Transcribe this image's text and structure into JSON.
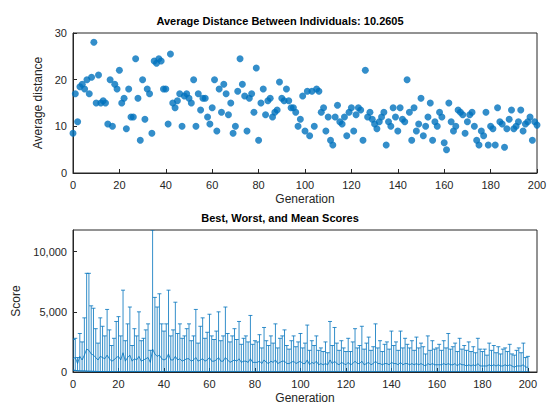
{
  "chart_data": [
    {
      "type": "scatter",
      "title": "Average Distance Between Individuals: 10.2605",
      "x_label": "Generation",
      "y_label": "Average distance",
      "color": "#0072BD",
      "marker": "circle",
      "grid": false,
      "xlim": [
        0,
        200
      ],
      "xticks": [
        0,
        20,
        40,
        60,
        80,
        100,
        120,
        140,
        160,
        180,
        200
      ],
      "ylim": [
        0,
        30
      ],
      "yticks": [
        0,
        10,
        20,
        30
      ],
      "x": [
        0,
        1,
        2,
        3,
        4,
        5,
        6,
        7,
        8,
        9,
        10,
        11,
        12,
        13,
        14,
        15,
        16,
        17,
        18,
        19,
        20,
        21,
        22,
        23,
        24,
        25,
        26,
        27,
        28,
        29,
        30,
        31,
        32,
        33,
        34,
        35,
        36,
        37,
        38,
        39,
        40,
        41,
        42,
        43,
        44,
        45,
        46,
        47,
        48,
        49,
        50,
        51,
        52,
        53,
        54,
        55,
        56,
        57,
        58,
        59,
        60,
        61,
        62,
        63,
        64,
        65,
        66,
        67,
        68,
        69,
        70,
        71,
        72,
        73,
        74,
        75,
        76,
        77,
        78,
        79,
        80,
        81,
        82,
        83,
        84,
        85,
        86,
        87,
        88,
        89,
        90,
        91,
        92,
        93,
        94,
        95,
        96,
        97,
        98,
        99,
        100,
        101,
        102,
        103,
        104,
        105,
        106,
        107,
        108,
        109,
        110,
        111,
        112,
        113,
        114,
        115,
        116,
        117,
        118,
        119,
        120,
        121,
        122,
        123,
        124,
        125,
        126,
        127,
        128,
        129,
        130,
        131,
        132,
        133,
        134,
        135,
        136,
        137,
        138,
        139,
        140,
        141,
        142,
        143,
        144,
        145,
        146,
        147,
        148,
        149,
        150,
        151,
        152,
        153,
        154,
        155,
        156,
        157,
        158,
        159,
        160,
        161,
        162,
        163,
        164,
        165,
        166,
        167,
        168,
        169,
        170,
        171,
        172,
        173,
        174,
        175,
        176,
        177,
        178,
        179,
        180,
        181,
        182,
        183,
        184,
        185,
        186,
        187,
        188,
        189,
        190,
        191,
        192,
        193,
        194,
        195,
        196,
        197,
        198,
        199,
        200
      ],
      "values": [
        8.5,
        17,
        11,
        18.5,
        19,
        18,
        20,
        17,
        20.5,
        28,
        15,
        21,
        15,
        15.5,
        15,
        10.5,
        20,
        10,
        19,
        18,
        22,
        15,
        16,
        9.5,
        18,
        12,
        12,
        24.5,
        16,
        7,
        20,
        11.5,
        18,
        17,
        8.5,
        24,
        23.5,
        24.5,
        24,
        18,
        18,
        10.5,
        25.5,
        15,
        14,
        15.5,
        17,
        10,
        16.5,
        17,
        16,
        15,
        20,
        10,
        17,
        13.5,
        16,
        16,
        12,
        10.5,
        14,
        20,
        9,
        18,
        13,
        19,
        17,
        12.5,
        15,
        8.5,
        10,
        17.5,
        24.5,
        19,
        16.5,
        9,
        16,
        17,
        13,
        22.5,
        7,
        15,
        18,
        12.5,
        15.5,
        16,
        12,
        13,
        13.5,
        19.5,
        16,
        15.5,
        18,
        15.5,
        14,
        14,
        13,
        10,
        11.5,
        16.5,
        9,
        17.5,
        8,
        17.5,
        10,
        18,
        17.5,
        13,
        14,
        9,
        12,
        7,
        6,
        12,
        14.5,
        11,
        10.5,
        12,
        8,
        13,
        14,
        9,
        12.5,
        14,
        13.5,
        7,
        22,
        12,
        13,
        11.5,
        10.5,
        9.5,
        11,
        12,
        13,
        6,
        11,
        10,
        14,
        12,
        9,
        14,
        11.5,
        11,
        20,
        13,
        7,
        14,
        9,
        10.5,
        16,
        8,
        10,
        12,
        15,
        7,
        11,
        10,
        13,
        12,
        6.5,
        5,
        15,
        11,
        9,
        10,
        13.5,
        13,
        12.5,
        8.5,
        11,
        12.5,
        13,
        10,
        7,
        6,
        9,
        8,
        13,
        6,
        10,
        9.5,
        6,
        14,
        11,
        10.5,
        5.5,
        9.5,
        11.5,
        13.5,
        9.5,
        10,
        11,
        13.5,
        9,
        10.5,
        11,
        12,
        7,
        11,
        10.2605
      ]
    },
    {
      "type": "errorbar",
      "title": "Best, Worst, and Mean Scores",
      "x_label": "Generation",
      "y_label": "Score",
      "color": "#0072BD",
      "grid": false,
      "xlim": [
        0,
        204
      ],
      "xticks": [
        0,
        20,
        40,
        60,
        80,
        100,
        120,
        140,
        160,
        180,
        200
      ],
      "ylim": [
        0,
        11800
      ],
      "yticks": [
        0,
        5000,
        10000
      ],
      "x": [
        0,
        1,
        2,
        3,
        4,
        5,
        6,
        7,
        8,
        9,
        10,
        11,
        12,
        13,
        14,
        15,
        16,
        17,
        18,
        19,
        20,
        21,
        22,
        23,
        24,
        25,
        26,
        27,
        28,
        29,
        30,
        31,
        32,
        33,
        34,
        35,
        36,
        37,
        38,
        39,
        40,
        41,
        42,
        43,
        44,
        45,
        46,
        47,
        48,
        49,
        50,
        51,
        52,
        53,
        54,
        55,
        56,
        57,
        58,
        59,
        60,
        61,
        62,
        63,
        64,
        65,
        66,
        67,
        68,
        69,
        70,
        71,
        72,
        73,
        74,
        75,
        76,
        77,
        78,
        79,
        80,
        81,
        82,
        83,
        84,
        85,
        86,
        87,
        88,
        89,
        90,
        91,
        92,
        93,
        94,
        95,
        96,
        97,
        98,
        99,
        100,
        101,
        102,
        103,
        104,
        105,
        106,
        107,
        108,
        109,
        110,
        111,
        112,
        113,
        114,
        115,
        116,
        117,
        118,
        119,
        120,
        121,
        122,
        123,
        124,
        125,
        126,
        127,
        128,
        129,
        130,
        131,
        132,
        133,
        134,
        135,
        136,
        137,
        138,
        139,
        140,
        141,
        142,
        143,
        144,
        145,
        146,
        147,
        148,
        149,
        150,
        151,
        152,
        153,
        154,
        155,
        156,
        157,
        158,
        159,
        160,
        161,
        162,
        163,
        164,
        165,
        166,
        167,
        168,
        169,
        170,
        171,
        172,
        173,
        174,
        175,
        176,
        177,
        178,
        179,
        180,
        181,
        182,
        183,
        184,
        185,
        186,
        187,
        188,
        189,
        190,
        191,
        192,
        193,
        194,
        195,
        196,
        197,
        198,
        199,
        200
      ],
      "best": [
        150,
        120,
        100,
        90,
        80,
        80,
        70,
        60,
        60,
        50,
        50,
        40,
        40,
        40,
        30,
        30,
        30,
        30,
        20,
        20,
        20,
        20,
        20,
        20,
        20,
        20,
        20,
        20,
        20,
        20,
        20,
        20,
        20,
        20,
        20,
        20,
        20,
        20,
        20,
        20,
        20,
        20,
        20,
        20,
        20,
        20,
        20,
        20,
        20,
        20,
        20,
        20,
        20,
        20,
        20,
        20,
        20,
        20,
        20,
        20,
        20,
        10,
        10,
        10,
        10,
        10,
        10,
        10,
        10,
        10,
        10,
        10,
        10,
        10,
        10,
        10,
        10,
        10,
        10,
        10,
        10,
        10,
        10,
        10,
        10,
        10,
        10,
        10,
        10,
        10,
        10,
        10,
        10,
        10,
        10,
        10,
        10,
        10,
        10,
        10,
        10,
        10,
        10,
        10,
        10,
        10,
        10,
        10,
        10,
        10,
        10,
        10,
        10,
        10,
        10,
        10,
        10,
        10,
        10,
        10,
        10,
        10,
        10,
        10,
        10,
        10,
        10,
        10,
        10,
        10,
        10,
        10,
        10,
        10,
        10,
        10,
        10,
        10,
        10,
        10,
        10,
        10,
        10,
        10,
        10,
        10,
        10,
        10,
        10,
        10,
        10,
        10,
        10,
        10,
        10,
        10,
        10,
        10,
        10,
        10,
        10,
        10,
        10,
        10,
        10,
        10,
        10,
        10,
        10,
        10,
        10,
        10,
        10,
        10,
        10,
        10,
        10,
        10,
        10,
        10,
        10,
        10,
        10,
        10,
        10,
        10,
        10,
        10,
        10,
        10,
        10,
        10,
        10,
        10,
        10,
        10,
        10,
        10,
        10,
        10,
        10
      ],
      "mean": [
        1100,
        1200,
        700,
        1300,
        1000,
        1400,
        1900,
        1800,
        1500,
        1400,
        1200,
        1000,
        1300,
        1200,
        1100,
        1400,
        1100,
        900,
        1000,
        1200,
        1300,
        1000,
        1600,
        900,
        1200,
        1400,
        900,
        1100,
        1000,
        1300,
        900,
        1000,
        1100,
        1200,
        800,
        1900,
        1500,
        1300,
        1400,
        1100,
        1000,
        1100,
        1500,
        1000,
        1000,
        1300,
        1000,
        1100,
        900,
        1000,
        1100,
        1100,
        900,
        1000,
        1200,
        900,
        1000,
        1100,
        900,
        1000,
        1200,
        900,
        900,
        1000,
        1200,
        900,
        900,
        1200,
        1000,
        800,
        900,
        1000,
        900,
        1100,
        800,
        900,
        900,
        800,
        1100,
        800,
        800,
        800,
        900,
        700,
        1000,
        800,
        700,
        900,
        800,
        1000,
        700,
        800,
        900,
        900,
        700,
        700,
        800,
        900,
        700,
        800,
        900,
        700,
        700,
        1000,
        600,
        800,
        700,
        900,
        600,
        700,
        600,
        700,
        600,
        1000,
        700,
        900,
        700,
        600,
        800,
        700,
        600,
        800,
        600,
        700,
        900,
        700,
        700,
        900,
        600,
        700,
        800,
        600,
        700,
        900,
        700,
        700,
        600,
        700,
        700,
        600,
        800,
        700,
        700,
        600,
        800,
        600,
        700,
        700,
        600,
        700,
        600,
        700,
        600,
        700,
        600,
        500,
        700,
        600,
        700,
        600,
        600,
        600,
        600,
        700,
        600,
        700,
        600,
        600,
        700,
        500,
        700,
        600,
        600,
        500,
        600,
        500,
        600,
        500,
        700,
        500,
        500,
        500,
        500,
        600,
        500,
        600,
        500,
        600,
        500,
        500,
        600,
        500,
        600,
        500,
        400,
        500,
        500,
        500,
        600,
        400,
        400
      ],
      "worst": [
        2700,
        2800,
        1200,
        3200,
        2500,
        4500,
        8200,
        8200,
        5500,
        5300,
        3600,
        2400,
        4500,
        3800,
        3000,
        5200,
        3500,
        2200,
        2800,
        4200,
        4600,
        3000,
        6800,
        2600,
        4000,
        5400,
        2200,
        3600,
        3000,
        5000,
        2600,
        2800,
        3500,
        4000,
        1800,
        11800,
        6200,
        5400,
        6500,
        4000,
        3400,
        4000,
        6800,
        3000,
        3500,
        5800,
        3200,
        4000,
        2800,
        3000,
        3600,
        4000,
        2600,
        3000,
        5200,
        2400,
        3800,
        4500,
        2800,
        3300,
        4800,
        3000,
        2700,
        3400,
        5000,
        2600,
        3000,
        5400,
        3200,
        2500,
        3000,
        3600,
        2700,
        4200,
        2300,
        2800,
        3000,
        2500,
        4700,
        2300,
        2600,
        2500,
        3100,
        2000,
        3700,
        2600,
        2200,
        3000,
        2400,
        4000,
        2000,
        2800,
        3000,
        3500,
        2200,
        1900,
        2600,
        3000,
        2100,
        2500,
        3200,
        2000,
        2400,
        3900,
        1800,
        2600,
        2200,
        3000,
        1800,
        2000,
        1700,
        2500,
        1600,
        4200,
        2200,
        3700,
        2400,
        1800,
        2600,
        2000,
        1700,
        2800,
        1700,
        2500,
        3600,
        2000,
        2200,
        3800,
        1900,
        2400,
        2900,
        1800,
        2100,
        4000,
        2000,
        2600,
        1700,
        2300,
        2500,
        1900,
        3400,
        2200,
        2500,
        1800,
        3400,
        2000,
        2800,
        2300,
        2000,
        2600,
        1800,
        2900,
        2000,
        2400,
        2100,
        1500,
        3000,
        1800,
        2600,
        1900,
        2000,
        2300,
        1800,
        2600,
        2000,
        3200,
        1900,
        2100,
        2400,
        1700,
        2800,
        1900,
        2200,
        1800,
        2500,
        1700,
        2100,
        1600,
        2800,
        1900,
        1700,
        1900,
        1400,
        2400,
        1800,
        2200,
        1600,
        2100,
        1500,
        1900,
        2000,
        1700,
        2300,
        1500,
        1400,
        1800,
        2000,
        1600,
        2400,
        1200,
        1300
      ]
    }
  ]
}
